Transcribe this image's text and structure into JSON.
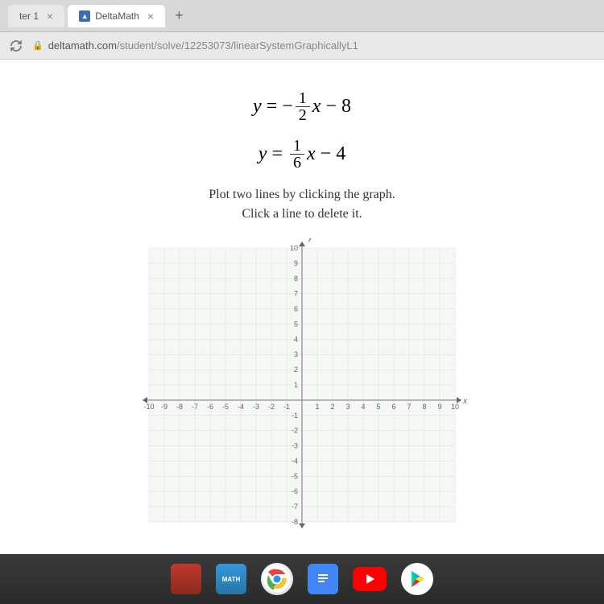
{
  "browser": {
    "tabs": [
      {
        "label": "ter 1",
        "active": false
      },
      {
        "label": "DeltaMath",
        "active": true
      }
    ],
    "url_host": "deltamath.com",
    "url_path": "/student/solve/12253073/linearSystemGraphicallyL1"
  },
  "content": {
    "eq1": {
      "lhs": "y",
      "sign": "−",
      "num": "1",
      "den": "2",
      "var": "x",
      "const_sign": "−",
      "const": "8"
    },
    "eq2": {
      "lhs": "y",
      "sign": "",
      "num": "1",
      "den": "6",
      "var": "x",
      "const_sign": "−",
      "const": "4"
    },
    "instruction_line1": "Plot two lines by clicking the graph.",
    "instruction_line2": "Click a line to delete it.",
    "graph": {
      "type": "coordinate-grid",
      "xlim": [
        -10,
        10
      ],
      "ylim": [
        -8,
        10
      ],
      "xtick_step": 1,
      "ytick_step": 1,
      "background_color": "#f5f7f5",
      "grid_color": "#d8e0d8",
      "axis_color": "#888888",
      "label_color": "#666666",
      "y_label": "y",
      "x_label": "x",
      "label_fontsize": 9,
      "x_ticks_neg": [
        "-10",
        "-9",
        "-8",
        "-7",
        "-6",
        "-5",
        "-4",
        "-3",
        "-2",
        "-1"
      ],
      "x_ticks_pos": [
        "1",
        "2",
        "3",
        "4",
        "5",
        "6",
        "7",
        "8",
        "9",
        "10"
      ],
      "y_ticks_pos": [
        "10",
        "9",
        "8",
        "7",
        "6",
        "5",
        "4",
        "3",
        "2",
        "1"
      ],
      "y_ticks_neg": [
        "-1",
        "-2",
        "-3",
        "-4",
        "-5",
        "-6",
        "-7",
        "-8"
      ],
      "arrow_color": "#666666"
    }
  },
  "taskbar": {
    "icons": [
      "app1",
      "app2",
      "chrome",
      "docs",
      "youtube",
      "play"
    ]
  }
}
